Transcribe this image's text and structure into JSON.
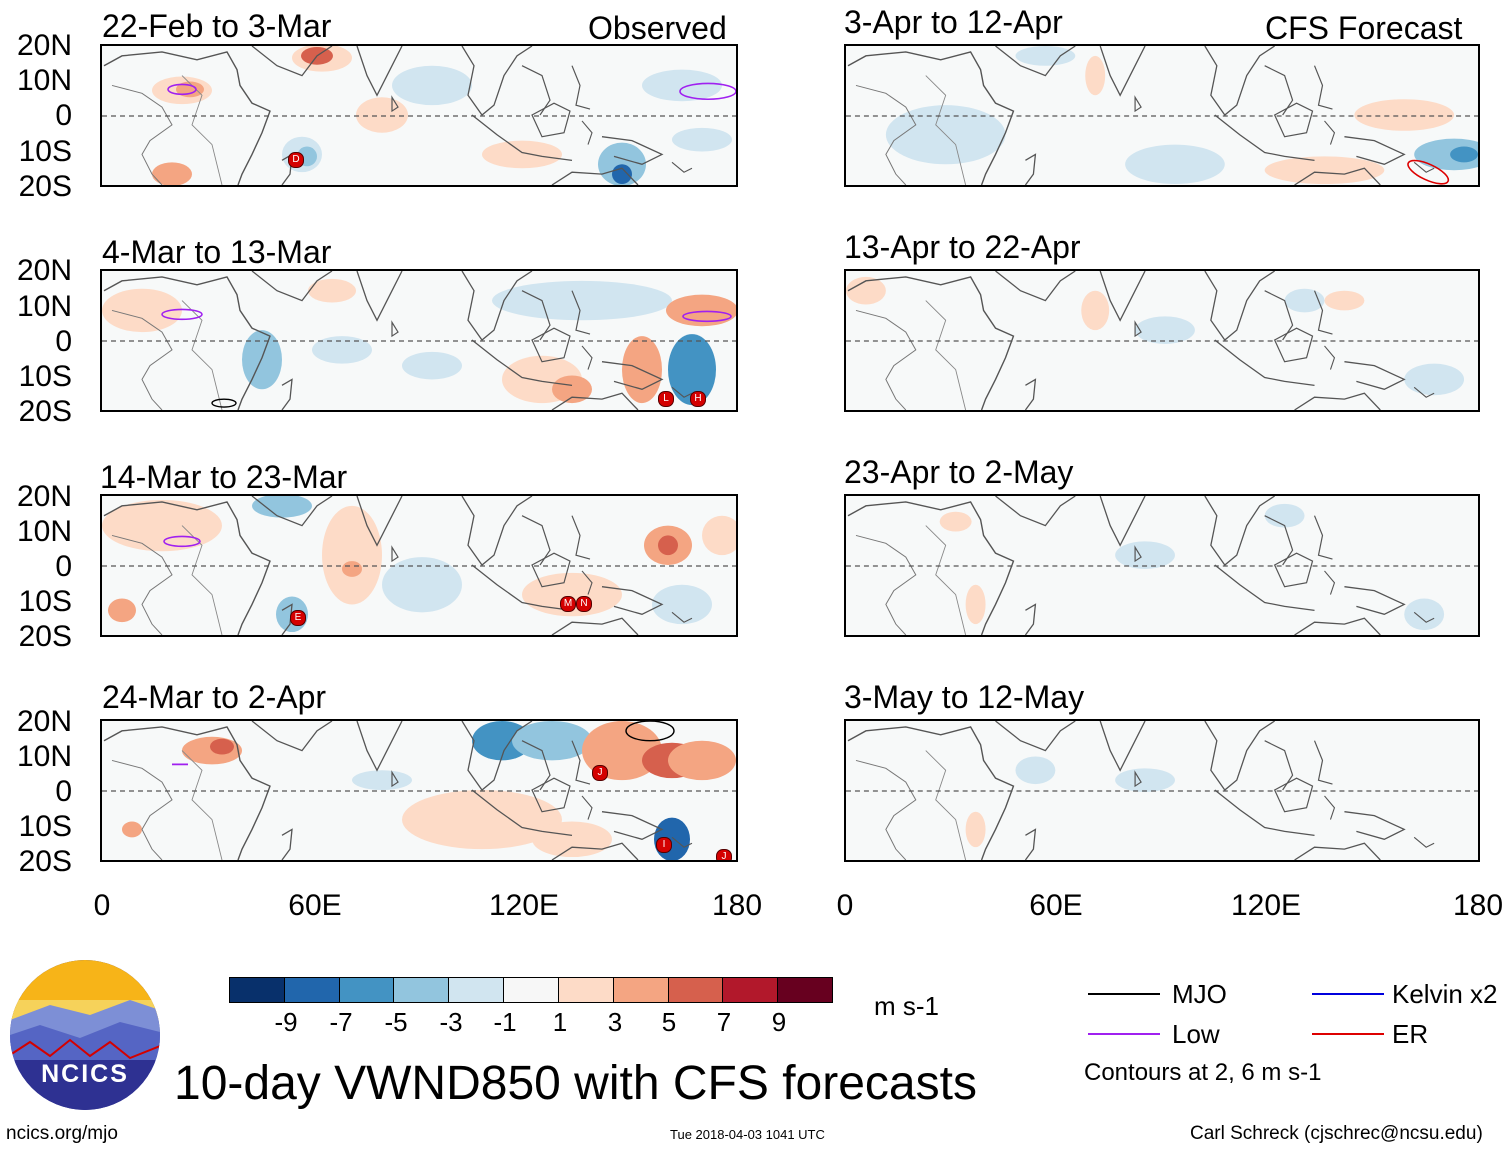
{
  "header": {
    "left_tag": "Observed",
    "right_tag": "CFS Forecast"
  },
  "panels_left": [
    {
      "title": "22-Feb to 3-Mar",
      "storms": [
        "D"
      ]
    },
    {
      "title": "4-Mar to 13-Mar",
      "storms": [
        "L",
        "H"
      ]
    },
    {
      "title": "14-Mar to 23-Mar",
      "storms": [
        "E",
        "M",
        "N"
      ]
    },
    {
      "title": "24-Mar to 2-Apr",
      "storms": [
        "J",
        "I",
        "J"
      ]
    }
  ],
  "panels_right": [
    {
      "title": "3-Apr to 12-Apr"
    },
    {
      "title": "13-Apr to 22-Apr"
    },
    {
      "title": "23-Apr to 2-May"
    },
    {
      "title": "3-May to 12-May"
    }
  ],
  "lat_labels": [
    "20N",
    "10N",
    "0",
    "10S",
    "20S"
  ],
  "lon_labels": [
    "0",
    "60E",
    "120E",
    "180"
  ],
  "colorbar": {
    "ticks": [
      "-9",
      "-7",
      "-5",
      "-3",
      "-1",
      "1",
      "3",
      "5",
      "7",
      "9"
    ],
    "colors": [
      "#08306b",
      "#2166ac",
      "#4393c3",
      "#92c5de",
      "#d1e5f0",
      "#f7f7f7",
      "#fddbc7",
      "#f4a582",
      "#d6604d",
      "#b2182b",
      "#67001f"
    ],
    "units": "m s-1"
  },
  "legend": {
    "items": [
      {
        "label": "MJO",
        "color": "#000000"
      },
      {
        "label": "Kelvin x2",
        "color": "#0000dd"
      },
      {
        "label": "Low",
        "color": "#a020f0"
      },
      {
        "label": "ER",
        "color": "#dd0000"
      }
    ],
    "note": "Contours at 2, 6 m s-1"
  },
  "footer": {
    "main_title": "10-day VWND850 with CFS forecasts",
    "logo_text": "NCICS",
    "url": "ncics.org/mjo",
    "timestamp": "Tue 2018-04-03 1041 UTC",
    "credit": "Carl Schreck (cjschrec@ncsu.edu)"
  }
}
